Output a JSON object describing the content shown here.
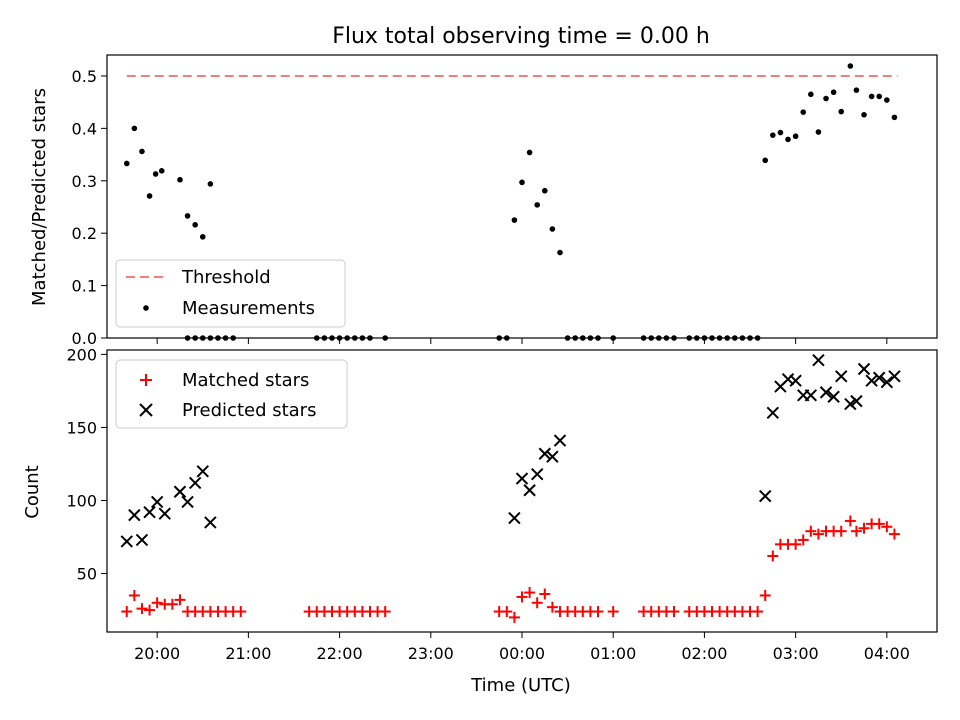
{
  "figure_title": "Flux total observing time = 0.00 h",
  "chart_data": [
    {
      "type": "scatter",
      "panel": "top",
      "title": "Flux total observing time = 0.00 h",
      "xlabel": "",
      "ylabel": "Matched/Predicted stars",
      "xlim_hours": [
        19.45,
        4.55
      ],
      "ylim": [
        0,
        0.54
      ],
      "yticks": [
        0.0,
        0.1,
        0.2,
        0.3,
        0.4,
        0.5
      ],
      "ytick_labels": [
        "0.0",
        "0.1",
        "0.2",
        "0.3",
        "0.4",
        "0.5"
      ],
      "legend_position": "lower-left",
      "threshold": {
        "name": "Threshold",
        "value": 0.5,
        "x_start": "19:40",
        "x_end": "04:07",
        "color": "#f08080",
        "style": "dashed"
      },
      "series": [
        {
          "name": "Measurements",
          "color": "#000000",
          "marker": "dot",
          "points": [
            [
              "19:40",
              0.333
            ],
            [
              "19:45",
              0.4
            ],
            [
              "19:50",
              0.356
            ],
            [
              "19:55",
              0.271
            ],
            [
              "19:59",
              0.313
            ],
            [
              "20:03",
              0.319
            ],
            [
              "20:15",
              0.302
            ],
            [
              "20:20",
              0.233
            ],
            [
              "20:25",
              0.216
            ],
            [
              "20:30",
              0.193
            ],
            [
              "20:35",
              0.294
            ],
            [
              "20:20",
              0.0
            ],
            [
              "20:25",
              0.0
            ],
            [
              "20:30",
              0.0
            ],
            [
              "20:35",
              0.0
            ],
            [
              "20:40",
              0.0
            ],
            [
              "20:45",
              0.0
            ],
            [
              "20:50",
              0.0
            ],
            [
              "21:45",
              0.0
            ],
            [
              "21:50",
              0.0
            ],
            [
              "21:55",
              0.0
            ],
            [
              "22:00",
              0.0
            ],
            [
              "22:05",
              0.0
            ],
            [
              "22:10",
              0.0
            ],
            [
              "22:15",
              0.0
            ],
            [
              "22:20",
              0.0
            ],
            [
              "22:30",
              0.0
            ],
            [
              "23:45",
              0.0
            ],
            [
              "23:50",
              0.0
            ],
            [
              "23:55",
              0.225
            ],
            [
              "00:00",
              0.297
            ],
            [
              "00:05",
              0.354
            ],
            [
              "00:10",
              0.254
            ],
            [
              "00:15",
              0.281
            ],
            [
              "00:20",
              0.208
            ],
            [
              "00:25",
              0.163
            ],
            [
              "00:30",
              0.0
            ],
            [
              "00:35",
              0.0
            ],
            [
              "00:40",
              0.0
            ],
            [
              "00:45",
              0.0
            ],
            [
              "00:50",
              0.0
            ],
            [
              "01:00",
              0.0
            ],
            [
              "01:20",
              0.0
            ],
            [
              "01:25",
              0.0
            ],
            [
              "01:30",
              0.0
            ],
            [
              "01:35",
              0.0
            ],
            [
              "01:40",
              0.0
            ],
            [
              "01:50",
              0.0
            ],
            [
              "01:55",
              0.0
            ],
            [
              "02:00",
              0.0
            ],
            [
              "02:05",
              0.0
            ],
            [
              "02:10",
              0.0
            ],
            [
              "02:15",
              0.0
            ],
            [
              "02:20",
              0.0
            ],
            [
              "02:25",
              0.0
            ],
            [
              "02:30",
              0.0
            ],
            [
              "02:35",
              0.0
            ],
            [
              "02:40",
              0.339
            ],
            [
              "02:45",
              0.387
            ],
            [
              "02:50",
              0.392
            ],
            [
              "02:55",
              0.379
            ],
            [
              "03:00",
              0.385
            ],
            [
              "03:05",
              0.431
            ],
            [
              "03:10",
              0.465
            ],
            [
              "03:15",
              0.393
            ],
            [
              "03:20",
              0.457
            ],
            [
              "03:25",
              0.469
            ],
            [
              "03:30",
              0.432
            ],
            [
              "03:36",
              0.519
            ],
            [
              "03:40",
              0.473
            ],
            [
              "03:45",
              0.426
            ],
            [
              "03:50",
              0.461
            ],
            [
              "03:55",
              0.461
            ],
            [
              "04:00",
              0.454
            ],
            [
              "04:05",
              0.421
            ]
          ]
        }
      ]
    },
    {
      "type": "scatter",
      "panel": "bottom",
      "xlabel": "Time (UTC)",
      "ylabel": "Count",
      "xlim_hours": [
        19.45,
        4.55
      ],
      "ylim": [
        10,
        203
      ],
      "yticks": [
        50,
        100,
        150,
        200
      ],
      "ytick_labels": [
        "50",
        "100",
        "150",
        "200"
      ],
      "xticks": [
        "20:00",
        "21:00",
        "22:00",
        "23:00",
        "00:00",
        "01:00",
        "02:00",
        "03:00",
        "04:00"
      ],
      "legend_position": "top-left",
      "series": [
        {
          "name": "Matched stars",
          "color": "#ff0000",
          "marker": "plus",
          "points": [
            [
              "19:40",
              24
            ],
            [
              "19:45",
              35
            ],
            [
              "19:50",
              26
            ],
            [
              "19:55",
              25
            ],
            [
              "20:00",
              30
            ],
            [
              "20:05",
              29
            ],
            [
              "20:10",
              29
            ],
            [
              "20:15",
              32
            ],
            [
              "20:20",
              24
            ],
            [
              "20:25",
              24
            ],
            [
              "20:30",
              24
            ],
            [
              "20:35",
              24
            ],
            [
              "20:40",
              24
            ],
            [
              "20:45",
              24
            ],
            [
              "20:50",
              24
            ],
            [
              "20:55",
              24
            ],
            [
              "21:40",
              24
            ],
            [
              "21:45",
              24
            ],
            [
              "21:50",
              24
            ],
            [
              "21:55",
              24
            ],
            [
              "22:00",
              24
            ],
            [
              "22:05",
              24
            ],
            [
              "22:10",
              24
            ],
            [
              "22:15",
              24
            ],
            [
              "22:20",
              24
            ],
            [
              "22:25",
              24
            ],
            [
              "22:30",
              24
            ],
            [
              "23:45",
              24
            ],
            [
              "23:50",
              24
            ],
            [
              "23:55",
              20
            ],
            [
              "00:00",
              34
            ],
            [
              "00:05",
              37
            ],
            [
              "00:10",
              30
            ],
            [
              "00:15",
              36
            ],
            [
              "00:20",
              27
            ],
            [
              "00:25",
              24
            ],
            [
              "00:30",
              24
            ],
            [
              "00:35",
              24
            ],
            [
              "00:40",
              24
            ],
            [
              "00:45",
              24
            ],
            [
              "00:50",
              24
            ],
            [
              "01:00",
              24
            ],
            [
              "01:20",
              24
            ],
            [
              "01:25",
              24
            ],
            [
              "01:30",
              24
            ],
            [
              "01:35",
              24
            ],
            [
              "01:40",
              24
            ],
            [
              "01:50",
              24
            ],
            [
              "01:55",
              24
            ],
            [
              "02:00",
              24
            ],
            [
              "02:05",
              24
            ],
            [
              "02:10",
              24
            ],
            [
              "02:15",
              24
            ],
            [
              "02:20",
              24
            ],
            [
              "02:25",
              24
            ],
            [
              "02:30",
              24
            ],
            [
              "02:35",
              24
            ],
            [
              "02:40",
              35
            ],
            [
              "02:45",
              62
            ],
            [
              "02:50",
              70
            ],
            [
              "02:55",
              70
            ],
            [
              "03:00",
              70
            ],
            [
              "03:05",
              73
            ],
            [
              "03:10",
              79
            ],
            [
              "03:15",
              77
            ],
            [
              "03:20",
              79
            ],
            [
              "03:25",
              79
            ],
            [
              "03:30",
              79
            ],
            [
              "03:36",
              86
            ],
            [
              "03:40",
              79
            ],
            [
              "03:45",
              81
            ],
            [
              "03:50",
              84
            ],
            [
              "03:55",
              84
            ],
            [
              "04:00",
              82
            ],
            [
              "04:05",
              77
            ]
          ]
        },
        {
          "name": "Predicted stars",
          "color": "#000000",
          "marker": "x",
          "points": [
            [
              "19:40",
              72
            ],
            [
              "19:45",
              90
            ],
            [
              "19:50",
              73
            ],
            [
              "19:55",
              92
            ],
            [
              "20:00",
              99
            ],
            [
              "20:05",
              91
            ],
            [
              "20:15",
              106
            ],
            [
              "20:20",
              99
            ],
            [
              "20:25",
              112
            ],
            [
              "20:30",
              120
            ],
            [
              "20:35",
              85
            ],
            [
              "23:55",
              88
            ],
            [
              "00:00",
              115
            ],
            [
              "00:05",
              107
            ],
            [
              "00:10",
              118
            ],
            [
              "00:15",
              132
            ],
            [
              "00:20",
              130
            ],
            [
              "00:25",
              141
            ],
            [
              "02:40",
              103
            ],
            [
              "02:45",
              160
            ],
            [
              "02:50",
              178
            ],
            [
              "02:55",
              183
            ],
            [
              "03:00",
              182
            ],
            [
              "03:05",
              172
            ],
            [
              "03:10",
              172
            ],
            [
              "03:15",
              196
            ],
            [
              "03:20",
              174
            ],
            [
              "03:25",
              171
            ],
            [
              "03:30",
              185
            ],
            [
              "03:36",
              166
            ],
            [
              "03:40",
              168
            ],
            [
              "03:45",
              190
            ],
            [
              "03:50",
              182
            ],
            [
              "03:55",
              184
            ],
            [
              "04:00",
              181
            ],
            [
              "04:05",
              185
            ]
          ]
        }
      ]
    }
  ]
}
